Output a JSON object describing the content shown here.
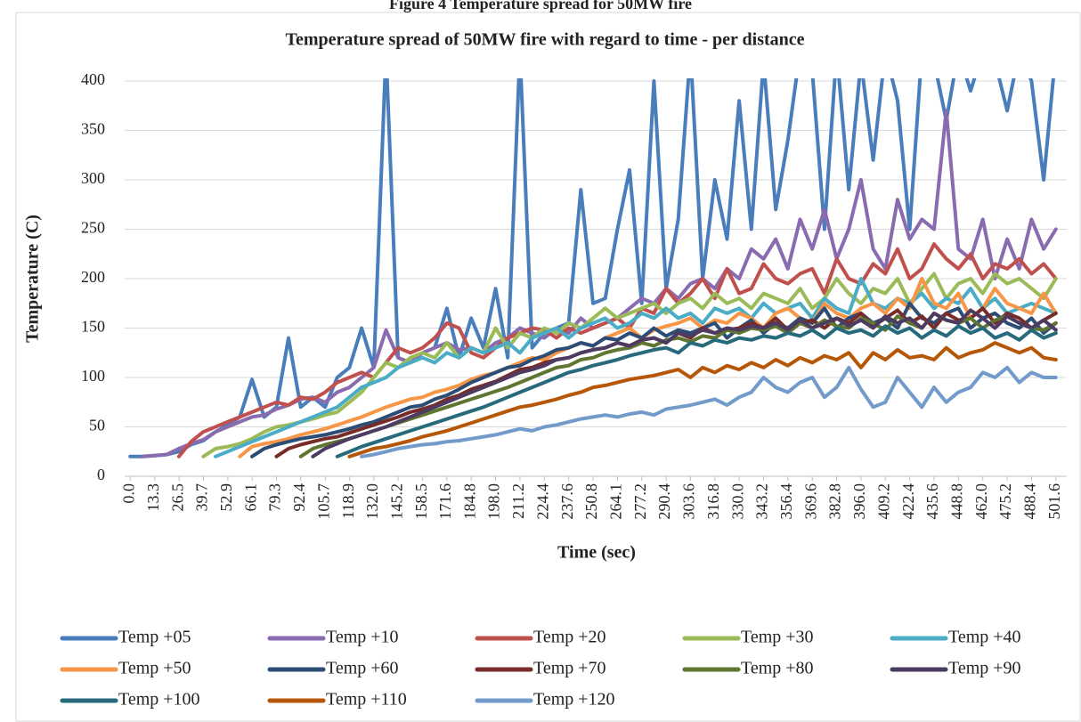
{
  "figure_caption": "Figure 4 Temperature spread for 50MW fire",
  "chart_data": {
    "type": "line",
    "title": "Temperature spread of 50MW fire with regard to time - per distance",
    "x_label": "Time (sec)",
    "y_label": "Temperature (C)",
    "xlim": [
      -3,
      507.5
    ],
    "ylim": [
      0,
      400
    ],
    "yticks": [
      0,
      50,
      100,
      150,
      200,
      250,
      300,
      350,
      400
    ],
    "grid": true,
    "legend": "bottom",
    "xticks": [
      {
        "value": 0,
        "label": "0.0"
      },
      13.3,
      26.5,
      39.7,
      52.9,
      66.1,
      79.3,
      92.4,
      105.7,
      118.9,
      {
        "value": 132,
        "label": "132.0"
      },
      145.2,
      158.5,
      171.6,
      184.8,
      {
        "value": 198,
        "label": "198.0"
      },
      211.2,
      224.4,
      237.6,
      250.8,
      264.1,
      277.2,
      290.4,
      303.6,
      316.8,
      {
        "value": 330,
        "label": "330.0"
      },
      343.2,
      356.4,
      369.6,
      382.8,
      {
        "value": 396,
        "label": "396.0"
      },
      409.2,
      422.4,
      435.6,
      448.8,
      {
        "value": 462,
        "label": "462.0"
      },
      475.2,
      488.4,
      501.6
    ],
    "x": [
      0,
      6.6,
      13.2,
      19.8,
      26.4,
      33,
      39.6,
      46.2,
      52.8,
      59.4,
      66,
      72.6,
      79.2,
      85.8,
      92.4,
      99,
      105.6,
      112.2,
      118.8,
      125.4,
      132,
      138.6,
      145.2,
      151.8,
      158.4,
      165,
      171.6,
      178.2,
      184.8,
      191.4,
      198,
      204.6,
      211.2,
      217.8,
      224.4,
      231,
      237.6,
      244.2,
      250.8,
      257.4,
      264,
      270.6,
      277.2,
      283.8,
      290.4,
      297,
      303.6,
      310.2,
      316.8,
      323.4,
      330,
      336.6,
      343.2,
      349.8,
      356.4,
      363,
      369.6,
      376.2,
      382.8,
      389.4,
      396,
      402.6,
      409.2,
      415.8,
      422.4,
      429,
      435.6,
      442.2,
      448.8,
      455.4,
      462,
      468.6,
      475.2,
      481.8,
      488.4,
      495,
      501.6
    ],
    "series": [
      {
        "name": "Temp +05",
        "color": "#4a7ebb",
        "values": [
          20,
          20,
          21,
          22,
          25,
          32,
          36,
          45,
          52,
          60,
          98,
          60,
          70,
          140,
          70,
          80,
          70,
          100,
          110,
          150,
          110,
          430,
          120,
          115,
          125,
          130,
          170,
          120,
          160,
          130,
          190,
          120,
          430,
          130,
          145,
          150,
          155,
          290,
          175,
          180,
          250,
          310,
          175,
          400,
          190,
          260,
          430,
          200,
          300,
          240,
          380,
          250,
          420,
          270,
          340,
          430,
          410,
          250,
          430,
          290,
          420,
          320,
          430,
          380,
          250,
          430,
          420,
          360,
          430,
          390,
          430,
          420,
          370,
          430,
          400,
          300,
          430
        ]
      },
      {
        "name": "Temp +10",
        "color": "#8a6bb0",
        "values": [
          null,
          20,
          21,
          22,
          28,
          33,
          37,
          45,
          50,
          55,
          60,
          62,
          68,
          72,
          78,
          80,
          75,
          85,
          90,
          100,
          110,
          148,
          120,
          115,
          125,
          130,
          135,
          128,
          130,
          125,
          135,
          140,
          150,
          145,
          140,
          150,
          145,
          160,
          150,
          155,
          160,
          170,
          180,
          175,
          190,
          180,
          195,
          200,
          190,
          210,
          200,
          230,
          220,
          240,
          210,
          260,
          230,
          270,
          220,
          250,
          300,
          230,
          210,
          280,
          240,
          260,
          250,
          370,
          230,
          220,
          260,
          200,
          240,
          210,
          260,
          230,
          250
        ]
      },
      {
        "name": "Temp +20",
        "color": "#c0504d",
        "values": [
          null,
          null,
          null,
          null,
          20,
          35,
          45,
          50,
          55,
          60,
          65,
          70,
          75,
          72,
          80,
          78,
          85,
          95,
          100,
          105,
          100,
          115,
          130,
          125,
          130,
          140,
          155,
          150,
          125,
          120,
          130,
          140,
          145,
          150,
          148,
          140,
          150,
          145,
          150,
          155,
          160,
          150,
          170,
          165,
          190,
          175,
          185,
          200,
          180,
          210,
          185,
          190,
          215,
          200,
          195,
          205,
          210,
          185,
          220,
          200,
          195,
          215,
          205,
          230,
          200,
          210,
          235,
          220,
          210,
          225,
          200,
          215,
          210,
          220,
          205,
          215,
          200
        ]
      },
      {
        "name": "Temp +30",
        "color": "#9bbb59",
        "values": [
          null,
          null,
          null,
          null,
          null,
          null,
          20,
          28,
          30,
          33,
          38,
          45,
          50,
          52,
          55,
          58,
          62,
          65,
          75,
          85,
          100,
          115,
          110,
          120,
          125,
          120,
          135,
          120,
          130,
          125,
          150,
          130,
          145,
          140,
          150,
          145,
          155,
          150,
          160,
          170,
          160,
          165,
          170,
          175,
          165,
          175,
          180,
          170,
          185,
          175,
          180,
          170,
          185,
          180,
          175,
          190,
          170,
          180,
          200,
          185,
          175,
          190,
          185,
          200,
          175,
          190,
          205,
          180,
          195,
          200,
          185,
          205,
          195,
          200,
          190,
          180,
          200
        ]
      },
      {
        "name": "Temp +40",
        "color": "#4bacc6",
        "values": [
          null,
          null,
          null,
          null,
          null,
          null,
          null,
          20,
          25,
          30,
          35,
          40,
          45,
          50,
          55,
          60,
          65,
          70,
          80,
          90,
          95,
          100,
          110,
          115,
          120,
          115,
          125,
          120,
          130,
          125,
          130,
          135,
          125,
          140,
          145,
          150,
          140,
          150,
          155,
          160,
          150,
          155,
          165,
          160,
          170,
          160,
          165,
          155,
          170,
          165,
          170,
          160,
          175,
          165,
          170,
          175,
          160,
          180,
          170,
          165,
          200,
          175,
          170,
          180,
          175,
          185,
          170,
          180,
          175,
          190,
          170,
          180,
          165,
          170,
          175,
          170,
          165
        ]
      },
      {
        "name": "Temp +50",
        "color": "#f79646",
        "values": [
          null,
          null,
          null,
          null,
          null,
          null,
          null,
          null,
          null,
          20,
          30,
          33,
          35,
          38,
          42,
          45,
          48,
          52,
          56,
          60,
          65,
          70,
          74,
          78,
          80,
          85,
          88,
          92,
          98,
          102,
          105,
          110,
          115,
          120,
          118,
          125,
          130,
          135,
          132,
          140,
          145,
          150,
          140,
          148,
          152,
          155,
          160,
          150,
          158,
          155,
          165,
          160,
          150,
          165,
          170,
          160,
          155,
          175,
          165,
          160,
          170,
          175,
          165,
          180,
          170,
          200,
          175,
          170,
          185,
          160,
          170,
          190,
          175,
          170,
          165,
          185,
          165
        ]
      },
      {
        "name": "Temp +60",
        "color": "#2c4d75",
        "values": [
          null,
          null,
          null,
          null,
          null,
          null,
          null,
          null,
          null,
          null,
          20,
          28,
          32,
          35,
          38,
          40,
          42,
          45,
          48,
          52,
          55,
          60,
          65,
          70,
          72,
          78,
          82,
          88,
          95,
          100,
          105,
          110,
          112,
          118,
          122,
          128,
          130,
          135,
          132,
          140,
          138,
          145,
          140,
          150,
          142,
          148,
          145,
          150,
          155,
          140,
          150,
          158,
          145,
          155,
          150,
          160,
          155,
          170,
          150,
          160,
          165,
          155,
          160,
          150,
          175,
          160,
          155,
          165,
          170,
          150,
          160,
          165,
          155,
          150,
          160,
          145,
          155
        ]
      },
      {
        "name": "Temp +70",
        "color": "#772c2a",
        "values": [
          null,
          null,
          null,
          null,
          null,
          null,
          null,
          null,
          null,
          null,
          null,
          null,
          20,
          28,
          32,
          35,
          38,
          40,
          44,
          48,
          52,
          56,
          60,
          65,
          68,
          72,
          78,
          82,
          88,
          92,
          96,
          102,
          108,
          110,
          115,
          118,
          120,
          125,
          128,
          130,
          135,
          132,
          138,
          140,
          135,
          145,
          140,
          150,
          145,
          148,
          150,
          155,
          150,
          160,
          148,
          155,
          158,
          150,
          160,
          155,
          165,
          152,
          160,
          168,
          155,
          162,
          150,
          165,
          158,
          160,
          170,
          155,
          165,
          160,
          150,
          158,
          165
        ]
      },
      {
        "name": "Temp +80",
        "color": "#5f7530",
        "values": [
          null,
          null,
          null,
          null,
          null,
          null,
          null,
          null,
          null,
          null,
          null,
          null,
          null,
          null,
          20,
          28,
          32,
          35,
          38,
          42,
          46,
          50,
          54,
          58,
          62,
          66,
          70,
          74,
          78,
          82,
          86,
          90,
          95,
          100,
          105,
          110,
          112,
          118,
          120,
          125,
          128,
          130,
          135,
          132,
          138,
          140,
          136,
          142,
          140,
          148,
          145,
          150,
          148,
          152,
          145,
          155,
          150,
          158,
          152,
          150,
          160,
          155,
          148,
          162,
          155,
          150,
          165,
          158,
          155,
          160,
          150,
          158,
          162,
          155,
          150,
          148,
          155
        ]
      },
      {
        "name": "Temp +90",
        "color": "#4d3b62",
        "values": [
          null,
          null,
          null,
          null,
          null,
          null,
          null,
          null,
          null,
          null,
          null,
          null,
          null,
          null,
          null,
          20,
          28,
          33,
          38,
          42,
          46,
          50,
          55,
          60,
          65,
          70,
          75,
          80,
          85,
          90,
          95,
          100,
          105,
          108,
          112,
          118,
          120,
          125,
          128,
          130,
          135,
          132,
          138,
          140,
          135,
          145,
          142,
          148,
          145,
          150,
          148,
          152,
          150,
          155,
          148,
          158,
          150,
          155,
          160,
          152,
          158,
          150,
          162,
          155,
          160,
          150,
          165,
          158,
          155,
          168,
          160,
          150,
          162,
          155,
          150,
          158,
          148
        ]
      },
      {
        "name": "Temp +100",
        "color": "#276a7c",
        "values": [
          null,
          null,
          null,
          null,
          null,
          null,
          null,
          null,
          null,
          null,
          null,
          null,
          null,
          null,
          null,
          null,
          null,
          20,
          25,
          30,
          34,
          38,
          42,
          46,
          50,
          54,
          58,
          62,
          66,
          70,
          75,
          80,
          85,
          90,
          95,
          100,
          105,
          108,
          112,
          115,
          118,
          122,
          125,
          128,
          130,
          125,
          135,
          132,
          138,
          135,
          140,
          138,
          142,
          140,
          145,
          142,
          148,
          140,
          150,
          145,
          148,
          142,
          152,
          145,
          150,
          140,
          148,
          142,
          152,
          145,
          150,
          140,
          145,
          138,
          148,
          140,
          145
        ]
      },
      {
        "name": "Temp +110",
        "color": "#b65708",
        "values": [
          null,
          null,
          null,
          null,
          null,
          null,
          null,
          null,
          null,
          null,
          null,
          null,
          null,
          null,
          null,
          null,
          null,
          null,
          20,
          24,
          28,
          30,
          33,
          36,
          40,
          43,
          46,
          50,
          54,
          58,
          62,
          66,
          70,
          72,
          75,
          78,
          82,
          85,
          90,
          92,
          95,
          98,
          100,
          102,
          105,
          108,
          100,
          110,
          105,
          112,
          108,
          115,
          110,
          118,
          112,
          120,
          115,
          122,
          118,
          125,
          110,
          125,
          118,
          128,
          120,
          122,
          118,
          130,
          120,
          125,
          128,
          135,
          130,
          125,
          130,
          120,
          118
        ]
      },
      {
        "name": "Temp +120",
        "color": "#729aca",
        "values": [
          null,
          null,
          null,
          null,
          null,
          null,
          null,
          null,
          null,
          null,
          null,
          null,
          null,
          null,
          null,
          null,
          null,
          null,
          null,
          20,
          22,
          25,
          28,
          30,
          32,
          33,
          35,
          36,
          38,
          40,
          42,
          45,
          48,
          46,
          50,
          52,
          55,
          58,
          60,
          62,
          60,
          63,
          65,
          62,
          68,
          70,
          72,
          75,
          78,
          72,
          80,
          85,
          100,
          90,
          85,
          95,
          100,
          80,
          90,
          110,
          88,
          70,
          75,
          100,
          85,
          70,
          90,
          75,
          85,
          90,
          105,
          100,
          110,
          95,
          105,
          100,
          100
        ]
      }
    ]
  }
}
